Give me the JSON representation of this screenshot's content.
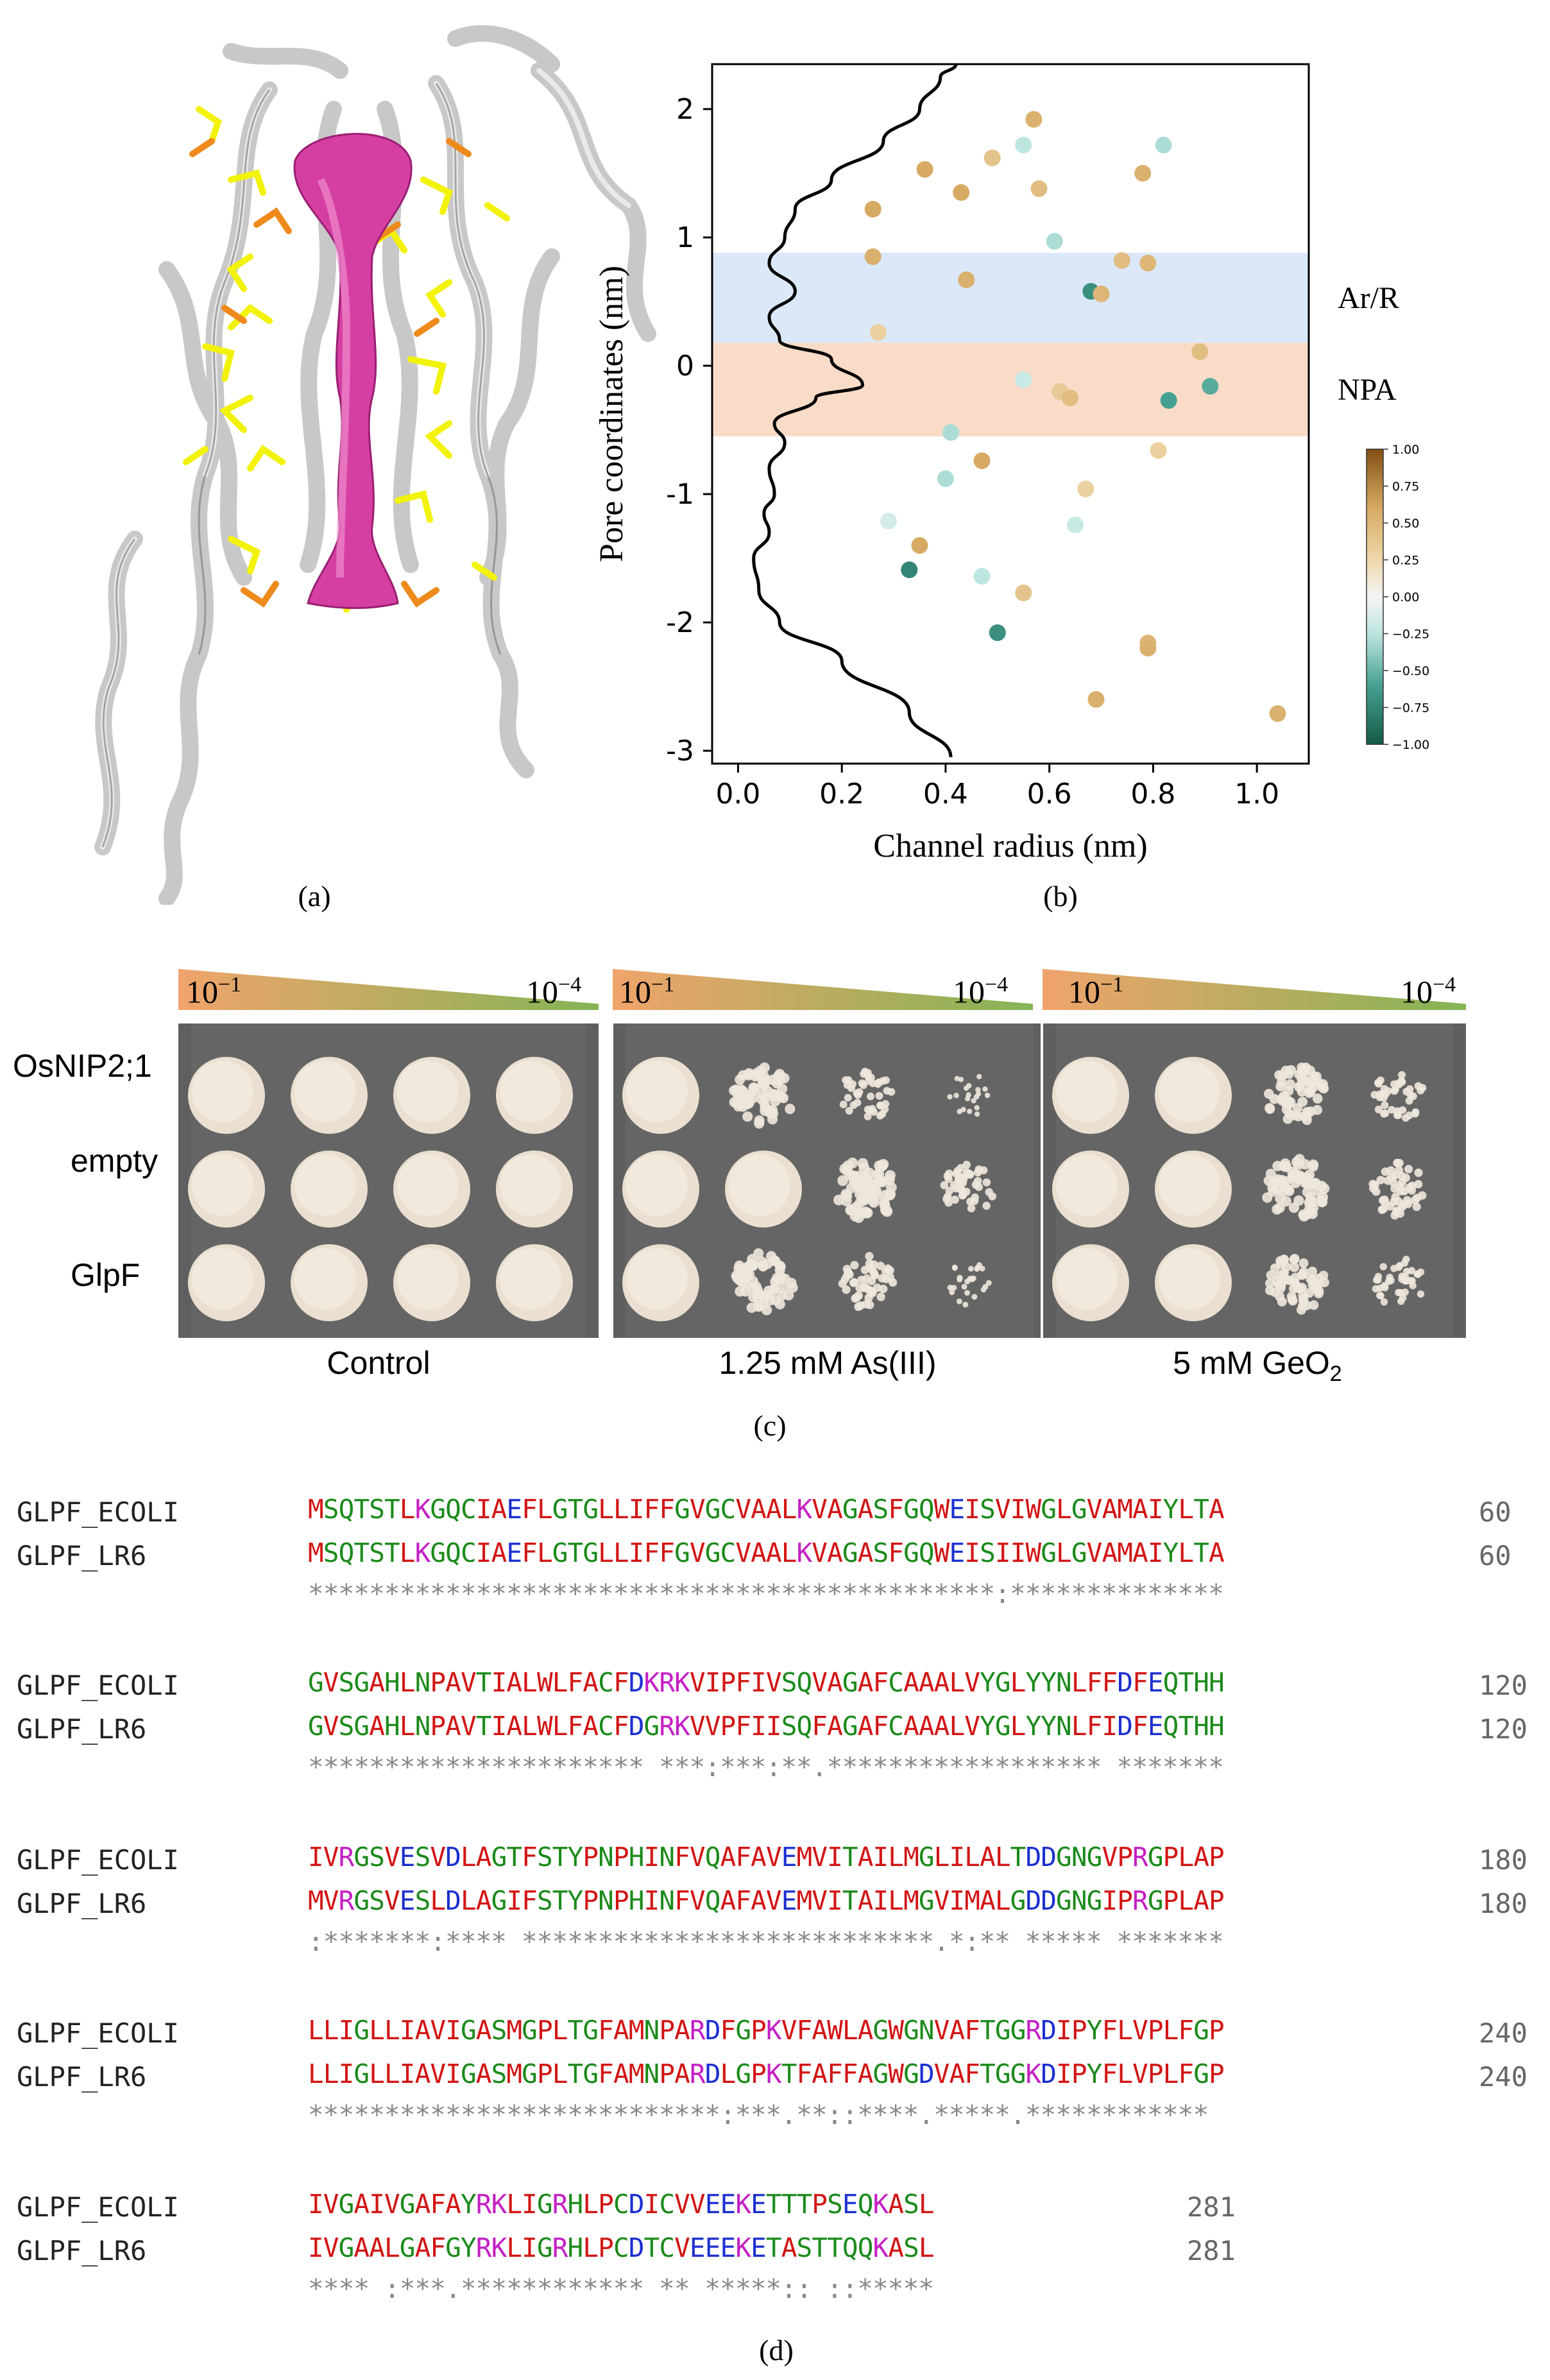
{
  "panel_labels": {
    "a": "(a)",
    "b": "(b)",
    "c": "(c)",
    "d": "(d)"
  },
  "chart_data": {
    "type": "scatter",
    "xlabel": "Channel radius (nm)",
    "ylabel": "Pore coordinates (nm)",
    "xlim": [
      -0.05,
      1.1
    ],
    "ylim": [
      -3.1,
      2.35
    ],
    "xticks": [
      "0.0",
      "0.2",
      "0.4",
      "0.6",
      "0.8",
      "1.0"
    ],
    "yticks": [
      "2",
      "1",
      "0",
      "-1",
      "-2",
      "-3"
    ],
    "regions": [
      {
        "name": "Ar/R",
        "y_from": 0.18,
        "y_to": 0.88,
        "color": "#dbe8f8"
      },
      {
        "name": "NPA",
        "y_from": -0.55,
        "y_to": 0.18,
        "color": "#f8dcc8"
      }
    ],
    "profile_curve": [
      [
        0.41,
        -3.05
      ],
      [
        0.33,
        -2.7
      ],
      [
        0.2,
        -2.3
      ],
      [
        0.08,
        -2.0
      ],
      [
        0.04,
        -1.75
      ],
      [
        0.03,
        -1.5
      ],
      [
        0.06,
        -1.3
      ],
      [
        0.05,
        -1.15
      ],
      [
        0.07,
        -1.0
      ],
      [
        0.06,
        -0.8
      ],
      [
        0.09,
        -0.6
      ],
      [
        0.07,
        -0.45
      ],
      [
        0.15,
        -0.25
      ],
      [
        0.24,
        -0.15
      ],
      [
        0.18,
        0.05
      ],
      [
        0.08,
        0.2
      ],
      [
        0.06,
        0.38
      ],
      [
        0.11,
        0.58
      ],
      [
        0.06,
        0.8
      ],
      [
        0.09,
        1.0
      ],
      [
        0.11,
        1.22
      ],
      [
        0.18,
        1.45
      ],
      [
        0.28,
        1.75
      ],
      [
        0.35,
        2.0
      ],
      [
        0.39,
        2.25
      ],
      [
        0.42,
        2.35
      ]
    ],
    "points": [
      {
        "x": 0.57,
        "y": 1.92,
        "c": 0.55
      },
      {
        "x": 0.82,
        "y": 1.72,
        "c": -0.3
      },
      {
        "x": 0.55,
        "y": 1.72,
        "c": -0.25
      },
      {
        "x": 0.49,
        "y": 1.62,
        "c": 0.4
      },
      {
        "x": 0.36,
        "y": 1.53,
        "c": 0.6
      },
      {
        "x": 0.78,
        "y": 1.5,
        "c": 0.55
      },
      {
        "x": 0.58,
        "y": 1.38,
        "c": 0.45
      },
      {
        "x": 0.43,
        "y": 1.35,
        "c": 0.6
      },
      {
        "x": 0.26,
        "y": 1.22,
        "c": 0.6
      },
      {
        "x": 0.61,
        "y": 0.97,
        "c": -0.3
      },
      {
        "x": 0.26,
        "y": 0.85,
        "c": 0.55
      },
      {
        "x": 0.74,
        "y": 0.82,
        "c": 0.45
      },
      {
        "x": 0.79,
        "y": 0.8,
        "c": 0.5
      },
      {
        "x": 0.44,
        "y": 0.67,
        "c": 0.55
      },
      {
        "x": 0.68,
        "y": 0.58,
        "c": -0.7
      },
      {
        "x": 0.7,
        "y": 0.56,
        "c": 0.5
      },
      {
        "x": 0.27,
        "y": 0.26,
        "c": 0.3
      },
      {
        "x": 0.89,
        "y": 0.11,
        "c": 0.45
      },
      {
        "x": 0.91,
        "y": -0.16,
        "c": -0.55
      },
      {
        "x": 0.55,
        "y": -0.11,
        "c": -0.2
      },
      {
        "x": 0.62,
        "y": -0.2,
        "c": 0.35
      },
      {
        "x": 0.64,
        "y": -0.25,
        "c": 0.45
      },
      {
        "x": 0.83,
        "y": -0.27,
        "c": -0.6
      },
      {
        "x": 0.41,
        "y": -0.52,
        "c": -0.3
      },
      {
        "x": 0.81,
        "y": -0.66,
        "c": 0.3
      },
      {
        "x": 0.47,
        "y": -0.74,
        "c": 0.6
      },
      {
        "x": 0.4,
        "y": -0.88,
        "c": -0.3
      },
      {
        "x": 0.67,
        "y": -0.96,
        "c": 0.3
      },
      {
        "x": 0.29,
        "y": -1.21,
        "c": -0.15
      },
      {
        "x": 0.65,
        "y": -1.24,
        "c": -0.2
      },
      {
        "x": 0.35,
        "y": -1.4,
        "c": 0.6
      },
      {
        "x": 0.33,
        "y": -1.59,
        "c": -0.75
      },
      {
        "x": 0.47,
        "y": -1.64,
        "c": -0.25
      },
      {
        "x": 0.55,
        "y": -1.77,
        "c": 0.4
      },
      {
        "x": 0.5,
        "y": -2.08,
        "c": -0.7
      },
      {
        "x": 0.79,
        "y": -2.16,
        "c": 0.5
      },
      {
        "x": 0.79,
        "y": -2.2,
        "c": 0.55
      },
      {
        "x": 0.69,
        "y": -2.6,
        "c": 0.55
      },
      {
        "x": 1.04,
        "y": -2.71,
        "c": 0.55
      }
    ],
    "colorbar": {
      "ticks": [
        "1.00",
        "0.75",
        "0.50",
        "0.25",
        "0.00",
        "−0.25",
        "−0.50",
        "−0.75",
        "−1.00"
      ],
      "range": [
        -1,
        1
      ]
    }
  },
  "plates": {
    "dilution_high": "10",
    "dilution_high_exp": "−1",
    "dilution_low": "10",
    "dilution_low_exp": "−4",
    "rows": [
      "OsNIP2;1",
      "empty",
      "GlpF"
    ],
    "conditions": [
      "Control",
      "1.25 mM As(III)",
      "5 mM GeO"
    ],
    "ge_subscript": "2",
    "growth": [
      [
        [
          1,
          1,
          1,
          1
        ],
        [
          1,
          1,
          1,
          1
        ],
        [
          1,
          1,
          1,
          1
        ]
      ],
      [
        [
          1,
          0.85,
          0.5,
          0.2
        ],
        [
          1,
          1,
          0.9,
          0.55
        ],
        [
          1,
          0.85,
          0.6,
          0.25
        ]
      ],
      [
        [
          1,
          1,
          0.8,
          0.5
        ],
        [
          1,
          1,
          0.85,
          0.6
        ],
        [
          1,
          1,
          0.75,
          0.45
        ]
      ]
    ]
  },
  "alignment": {
    "seq1_name": "GLPF_ECOLI",
    "seq2_name": "GLPF_LR6",
    "blocks": [
      {
        "s1": "MSQTSTLKGQCIAEFLGTGLLIFFGVGCVAALKVAGASFGQWEISVIWGLGVAMAIYLTA",
        "s2": "MSQTSTLKGQCIAEFLGTGLLIFFGVGCVAALKVAGASFGQWEISIIWGLGVAMAIYLTA",
        "cons": "*********************************************:**************",
        "num": "60"
      },
      {
        "s1": "GVSGAHLNPAVTIALWLFACFDKRKVIPFIVSQVAGAFCAAALVYGLYYNLFFDFEQTHH",
        "s2": "GVSGAHLNPAVTIALWLFACFDGRKVVPFIISQFAGAFCAAALVYGLYYNLFIDFEQTHH",
        "cons": "********************** ***:***:**.****************** *******",
        "num": "120"
      },
      {
        "s1": "IVRGSVESVDLAGTFSTYPNPHINFVQAFAVEMVITAILMGLILALTDDGNGVPRGPLAP",
        "s2": "MVRGSVESLDLAGIFSTYPNPHINFVQAFAVEMVITAILMGVIMALGDDGNGIPRGPLAP",
        "cons": ":*******:**** ***************************.*:** ***** *******",
        "num": "180"
      },
      {
        "s1": "LLIGLLIAVIGASMGPLTGFAMNPARDFGPKVFAWLAGWGNVAFTGGRDIPYFLVPLFGP",
        "s2": "LLIGLLIAVIGASMGPLTGFAMNPARDLGPKTFAFFAGWGDVAFTGGKDIPYFLVPLFGP",
        "cons": "***************************:***.**::****.*****.************",
        "num": "240"
      },
      {
        "s1": "IVGAIVGAFAYRKLIGRHLPCDICVVEEKETTTPSEQKASL",
        "s2": "IVGAALGAFGYRKLIGRHLPCDTCVEEEKETASTTQQKASL",
        "cons": "**** :***.************ ** *****:: ::*****",
        "num": "281"
      }
    ]
  }
}
